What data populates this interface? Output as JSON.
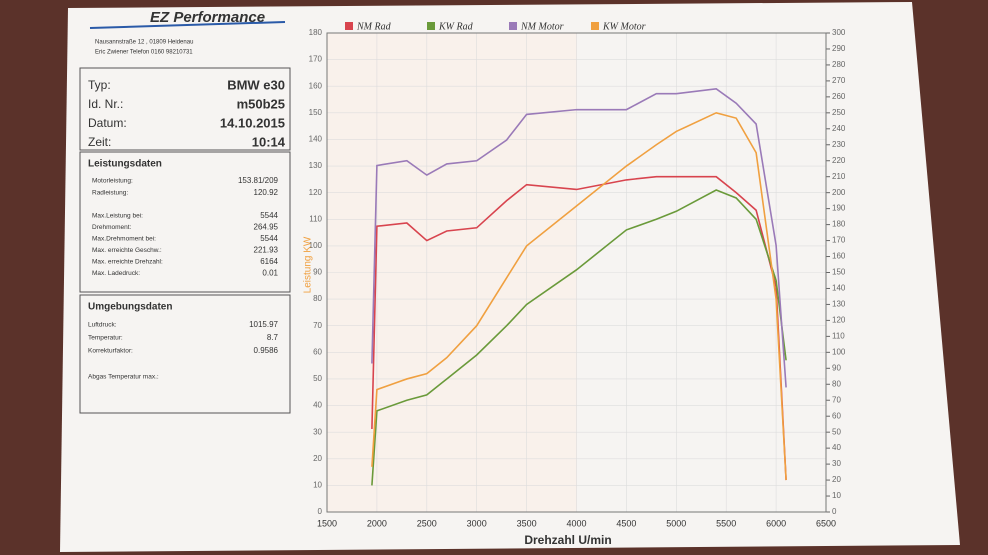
{
  "panel": {
    "logo": "EZ Performance",
    "address": [
      "Nausannstraße 12 , 01809 Heidenau",
      "Eric Zwiener  Telefon 0160 98210731"
    ],
    "vehicle": [
      {
        "label": "Typ:",
        "value": "BMW e30"
      },
      {
        "label": "Id. Nr.:",
        "value": "m50b25"
      },
      {
        "label": "Datum:",
        "value": "14.10.2015"
      },
      {
        "label": "Zeit:",
        "value": "10:14"
      }
    ],
    "performance": {
      "title": "Leistungsdaten",
      "rows": [
        {
          "label": "Motorleistung:",
          "value": "153.81/209"
        },
        {
          "label": "Radleistung:",
          "value": "120.92"
        },
        {
          "label": "Max.Leistung bei:",
          "value": "5544"
        },
        {
          "label": "Drehmoment:",
          "value": "264.95"
        },
        {
          "label": "Max.Drehmoment bei:",
          "value": "5544"
        },
        {
          "label": "Max. erreichte Geschw.:",
          "value": "221.93"
        },
        {
          "label": "Max. erreichte Drehzahl:",
          "value": "6164"
        },
        {
          "label": "Max. Ladedruck:",
          "value": "0.01"
        }
      ]
    },
    "environment": {
      "title": "Umgebungsdaten",
      "rows": [
        {
          "label": "Luftdruck:",
          "value": "1015.97"
        },
        {
          "label": "Temperatur:",
          "value": "8.7"
        },
        {
          "label": "Korrekturfaktor:",
          "value": "0.9586"
        }
      ]
    },
    "note": "Abgas Temperatur max.:"
  },
  "chart_data": {
    "type": "line",
    "ylabel": "Leistung KW",
    "xlabel": "Drehzahl U/min",
    "x": [
      1950,
      2000,
      2300,
      2500,
      2700,
      3000,
      3300,
      3500,
      4000,
      4500,
      4800,
      5000,
      5400,
      5600,
      5800,
      6000,
      6100
    ],
    "series": [
      {
        "name": "NM Rad",
        "color": "#d8444e",
        "axis": "y2",
        "values": [
          52,
          179,
          181,
          170,
          176,
          178,
          195,
          205,
          202,
          208,
          210,
          210,
          210,
          200,
          189,
          141,
          20
        ]
      },
      {
        "name": "KW Rad",
        "color": "#6a9a3a",
        "values": [
          10,
          38,
          42,
          44,
          50,
          59,
          70,
          78,
          91,
          106,
          110,
          113,
          121,
          118,
          110,
          87,
          57
        ]
      },
      {
        "name": "NM Motor",
        "color": "#9a7ab8",
        "axis": "y2",
        "values": [
          93,
          217,
          220,
          211,
          218,
          220,
          233,
          249,
          252,
          252,
          262,
          262,
          265,
          256,
          243,
          167,
          78
        ]
      },
      {
        "name": "KW Motor",
        "color": "#f0a040",
        "values": [
          17,
          46,
          50,
          52,
          58,
          70,
          88,
          100,
          115,
          130,
          138,
          143,
          150,
          148,
          135,
          80,
          12
        ]
      }
    ],
    "xlim": [
      1500,
      6500
    ],
    "xticks": [
      1500,
      2000,
      2500,
      3000,
      3500,
      4000,
      4500,
      5000,
      5500,
      6000,
      6500
    ],
    "ylim": [
      0,
      180
    ],
    "yticks": [
      0,
      10,
      20,
      30,
      40,
      50,
      60,
      70,
      80,
      90,
      100,
      110,
      120,
      130,
      140,
      150,
      160,
      170,
      180
    ],
    "y2lim": [
      0,
      300
    ],
    "y2ticks": [
      0,
      10,
      20,
      30,
      40,
      50,
      60,
      70,
      80,
      90,
      100,
      110,
      120,
      130,
      140,
      150,
      160,
      170,
      180,
      190,
      200,
      210,
      220,
      230,
      240,
      250,
      260,
      270,
      280,
      290,
      300
    ],
    "grid": true
  }
}
